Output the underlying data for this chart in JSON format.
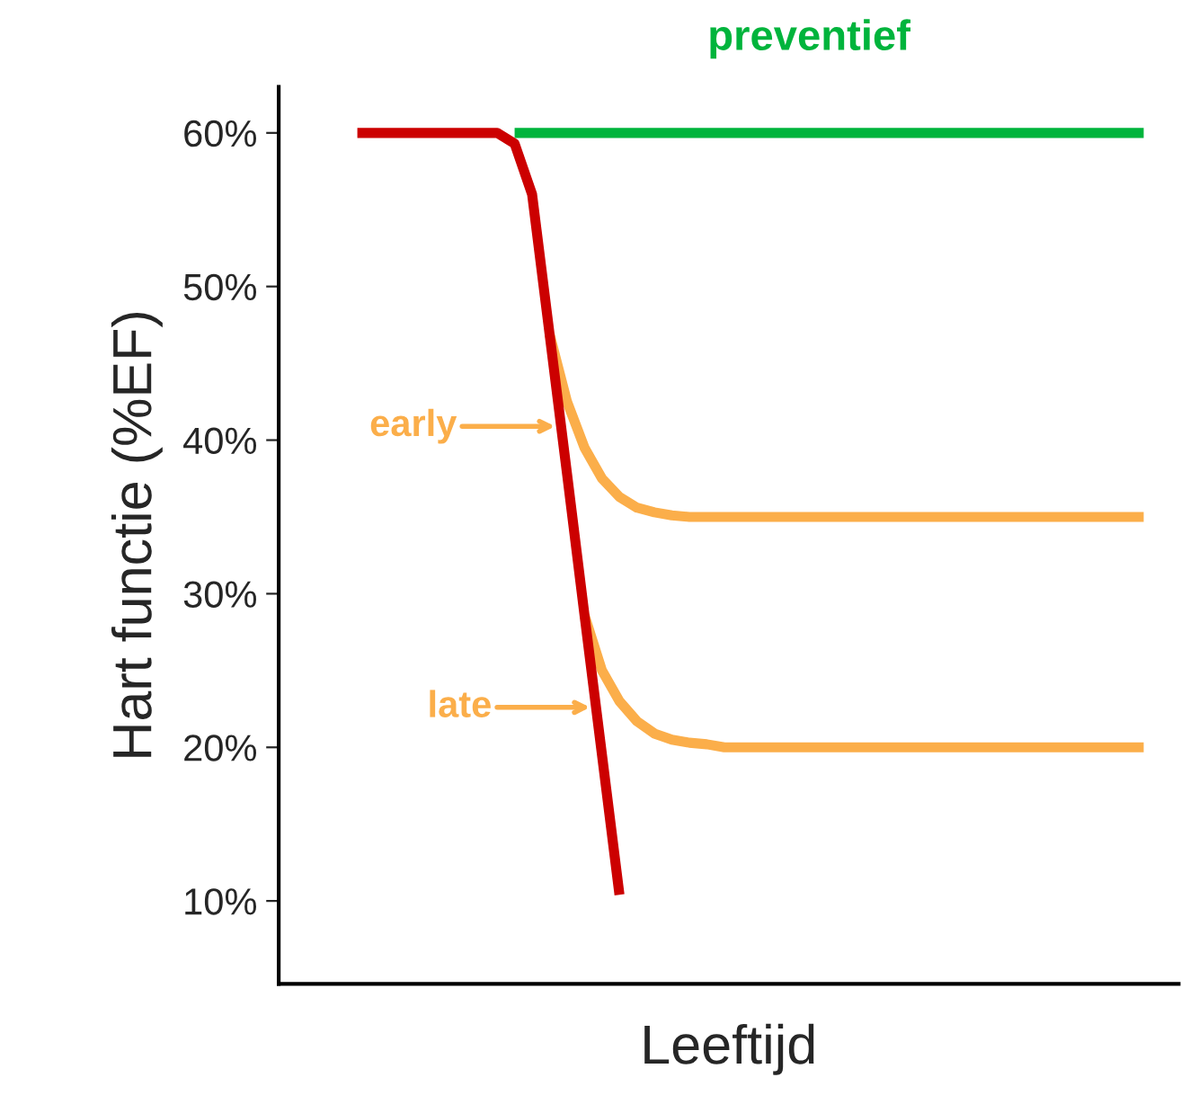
{
  "chart_data": {
    "type": "line",
    "xlabel": "Leeftijd",
    "ylabel": "Hart functie (%EF)",
    "categories": [
      null,
      null,
      null,
      null,
      null,
      null,
      null,
      null,
      null,
      null,
      null,
      null,
      null,
      null,
      null,
      null,
      null,
      null,
      null,
      null,
      null,
      null,
      null,
      null,
      null,
      null,
      null,
      null,
      null,
      null,
      null,
      null,
      null,
      null,
      null,
      null,
      null,
      null,
      null,
      null,
      null,
      null,
      null,
      null,
      null,
      null,
      null,
      null,
      null,
      null,
      null
    ],
    "ylim": [
      4.6,
      63
    ],
    "yticks": [
      {
        "value": 10,
        "label": "10%"
      },
      {
        "value": 20,
        "label": "20%"
      },
      {
        "value": 30,
        "label": "30%"
      },
      {
        "value": 40,
        "label": "40%"
      },
      {
        "value": 50,
        "label": "50%"
      },
      {
        "value": 60,
        "label": "60%"
      }
    ],
    "tick_labels": "y",
    "marker": "none",
    "line_style": "solid",
    "series": [
      {
        "color": "#00b43c",
        "values": [
          null,
          null,
          null,
          null,
          null,
          null,
          null,
          null,
          null,
          null,
          null,
          null,
          60,
          60,
          60,
          60,
          60,
          60,
          60,
          60,
          60,
          60,
          60,
          60,
          60,
          60,
          60,
          60,
          60,
          60,
          60,
          60,
          60,
          60,
          60,
          60,
          60,
          60,
          60,
          60,
          60,
          60,
          60,
          60,
          60,
          60,
          60,
          60,
          60,
          null,
          null
        ]
      },
      {
        "color": "#fbae4a",
        "values": [
          null,
          null,
          null,
          null,
          null,
          null,
          null,
          null,
          null,
          null,
          null,
          null,
          null,
          null,
          46.9,
          42.5,
          39.5,
          37.5,
          36.3,
          35.6,
          35.3,
          35.1,
          35,
          35,
          35,
          35,
          35,
          35,
          35,
          35,
          35,
          35,
          35,
          35,
          35,
          35,
          35,
          35,
          35,
          35,
          35,
          35,
          35,
          35,
          35,
          35,
          35,
          35,
          35,
          null,
          null
        ]
      },
      {
        "color": "#fbae4a",
        "values": [
          null,
          null,
          null,
          null,
          null,
          null,
          null,
          null,
          null,
          null,
          null,
          null,
          null,
          null,
          null,
          null,
          28.6,
          25,
          23,
          21.7,
          20.9,
          20.5,
          20.3,
          20.2,
          20,
          20,
          20,
          20,
          20,
          20,
          20,
          20,
          20,
          20,
          20,
          20,
          20,
          20,
          20,
          20,
          20,
          20,
          20,
          20,
          20,
          20,
          20,
          20,
          20,
          null,
          null
        ]
      },
      {
        "color": "#cc0000",
        "values": [
          null,
          null,
          null,
          60,
          60,
          60,
          60,
          60,
          60,
          60,
          60,
          60,
          59.3,
          56,
          46.9,
          37.8,
          28.6,
          19.5,
          10.4,
          null,
          null,
          null,
          null,
          null,
          null,
          null,
          null,
          null,
          null,
          null,
          null,
          null,
          null,
          null,
          null,
          null,
          null,
          null,
          null,
          null,
          null,
          null,
          null,
          null,
          null,
          null,
          null,
          null,
          null,
          null,
          null
        ]
      }
    ],
    "annotations": [
      "preventief",
      "early",
      "late"
    ]
  }
}
